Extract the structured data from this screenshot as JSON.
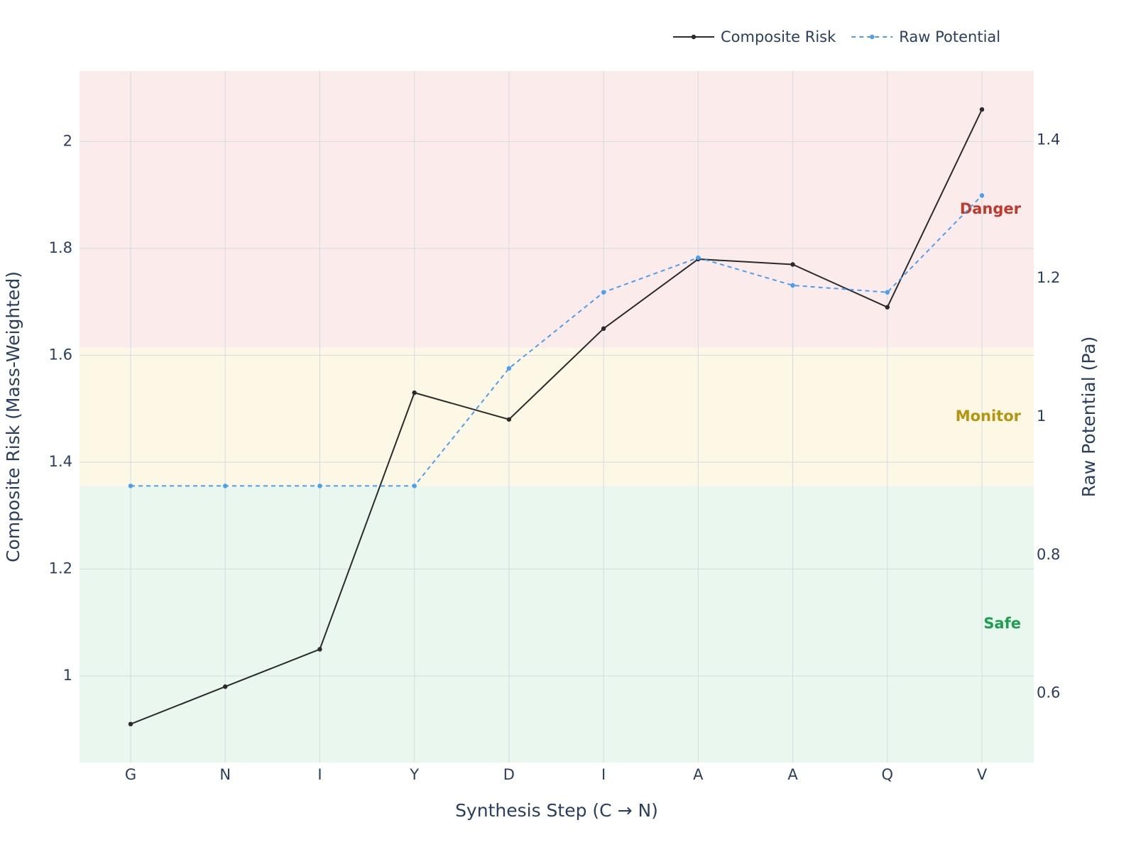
{
  "chart_data": {
    "type": "line",
    "x_label": "Synthesis Step (C → N)",
    "y_label": "Composite Risk (Mass-Weighted)",
    "y2_label": "Raw Potential (Pa)",
    "categories": [
      "G",
      "N",
      "I",
      "Y",
      "D",
      "I",
      "A",
      "A",
      "Q",
      "V"
    ],
    "series": [
      {
        "name": "Composite Risk",
        "color": "#2b2b2b",
        "dash": false,
        "values": [
          0.91,
          0.98,
          1.05,
          1.53,
          1.48,
          1.65,
          1.78,
          1.77,
          1.69,
          2.06
        ]
      },
      {
        "name": "Raw Potential",
        "color": "#4a9ff5",
        "dash": true,
        "axis": "y2",
        "values": [
          0.9,
          0.9,
          0.9,
          0.9,
          1.07,
          1.18,
          1.23,
          1.19,
          1.18,
          1.32
        ]
      }
    ],
    "ylim": [
      0.838,
      2.132
    ],
    "yticks": [
      1,
      1.2,
      1.4,
      1.6,
      1.8,
      2
    ],
    "y2lim": [
      0.5,
      1.5
    ],
    "y2ticks": [
      0.6,
      0.8,
      1,
      1.2,
      1.4
    ],
    "grid": true,
    "legend": "top-right",
    "bands": [
      {
        "label": "Safe",
        "range": [
          0.5,
          0.9
        ],
        "fill": "#e9f7ee",
        "color": "#1e9e50"
      },
      {
        "label": "Monitor",
        "range": [
          0.9,
          1.1
        ],
        "fill": "#fdf7e6",
        "color": "#b7950b"
      },
      {
        "label": "Danger",
        "range": [
          1.1,
          1.5
        ],
        "fill": "#fcebeb",
        "color": "#c0392b"
      }
    ]
  }
}
